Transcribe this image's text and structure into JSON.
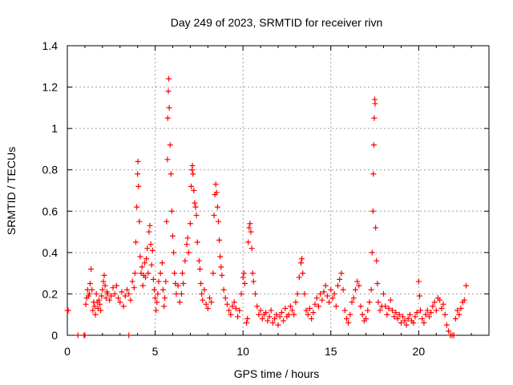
{
  "chart_data": {
    "type": "scatter",
    "title": "Day 249 of 2023, SRMTID for receiver rivn",
    "xlabel": "GPS time / hours",
    "ylabel": "SRMTID / TECUs",
    "xlim": [
      0,
      24
    ],
    "ylim": [
      0,
      1.4
    ],
    "xticks": [
      0,
      5,
      10,
      15,
      20
    ],
    "xtick_labels": [
      "0",
      "5",
      "10",
      "15",
      "20"
    ],
    "yticks": [
      0,
      0.2,
      0.4,
      0.6,
      0.8,
      1.0,
      1.2,
      1.4
    ],
    "ytick_labels": [
      "0",
      "0.2",
      "0.4",
      "0.6",
      "0.8",
      "1",
      "1.2",
      "1.4"
    ],
    "grid": true,
    "marker": "+",
    "color": "#ff0000",
    "series": [
      {
        "name": "SRMTID",
        "points": [
          [
            0.0,
            0.12
          ],
          [
            0.05,
            0.12
          ],
          [
            0.6,
            0.0
          ],
          [
            0.95,
            0.0
          ],
          [
            1.0,
            0.0
          ],
          [
            1.05,
            0.15
          ],
          [
            1.1,
            0.18
          ],
          [
            1.15,
            0.22
          ],
          [
            1.2,
            0.19
          ],
          [
            1.25,
            0.2
          ],
          [
            1.3,
            0.25
          ],
          [
            1.35,
            0.32
          ],
          [
            1.4,
            0.22
          ],
          [
            1.45,
            0.12
          ],
          [
            1.5,
            0.16
          ],
          [
            1.55,
            0.14
          ],
          [
            1.6,
            0.1
          ],
          [
            1.65,
            0.2
          ],
          [
            1.7,
            0.16
          ],
          [
            1.75,
            0.13
          ],
          [
            1.8,
            0.17
          ],
          [
            1.85,
            0.15
          ],
          [
            1.9,
            0.12
          ],
          [
            1.95,
            0.19
          ],
          [
            2.0,
            0.22
          ],
          [
            2.05,
            0.26
          ],
          [
            2.1,
            0.29
          ],
          [
            2.15,
            0.24
          ],
          [
            2.2,
            0.18
          ],
          [
            2.25,
            0.21
          ],
          [
            2.3,
            0.2
          ],
          [
            2.4,
            0.17
          ],
          [
            2.5,
            0.19
          ],
          [
            2.6,
            0.23
          ],
          [
            2.7,
            0.2
          ],
          [
            2.8,
            0.24
          ],
          [
            2.9,
            0.18
          ],
          [
            3.0,
            0.16
          ],
          [
            3.1,
            0.21
          ],
          [
            3.2,
            0.14
          ],
          [
            3.3,
            0.19
          ],
          [
            3.4,
            0.22
          ],
          [
            3.5,
            0.0
          ],
          [
            3.5,
            0.2
          ],
          [
            3.6,
            0.17
          ],
          [
            3.7,
            0.26
          ],
          [
            3.8,
            0.23
          ],
          [
            3.85,
            0.3
          ],
          [
            3.9,
            0.45
          ],
          [
            3.95,
            0.62
          ],
          [
            4.0,
            0.78
          ],
          [
            4.02,
            0.84
          ],
          [
            4.05,
            0.72
          ],
          [
            4.1,
            0.55
          ],
          [
            4.15,
            0.38
          ],
          [
            4.2,
            0.3
          ],
          [
            4.25,
            0.33
          ],
          [
            4.3,
            0.24
          ],
          [
            4.35,
            0.29
          ],
          [
            4.4,
            0.35
          ],
          [
            4.45,
            0.28
          ],
          [
            4.5,
            0.37
          ],
          [
            4.55,
            0.42
          ],
          [
            4.6,
            0.3
          ],
          [
            4.65,
            0.5
          ],
          [
            4.7,
            0.53
          ],
          [
            4.75,
            0.44
          ],
          [
            4.8,
            0.34
          ],
          [
            4.85,
            0.41
          ],
          [
            4.9,
            0.27
          ],
          [
            4.95,
            0.22
          ],
          [
            5.0,
            0.18
          ],
          [
            5.05,
            0.12
          ],
          [
            5.1,
            0.16
          ],
          [
            5.15,
            0.2
          ],
          [
            5.2,
            0.26
          ],
          [
            5.3,
            0.3
          ],
          [
            5.4,
            0.35
          ],
          [
            5.45,
            0.22
          ],
          [
            5.5,
            0.14
          ],
          [
            5.55,
            0.18
          ],
          [
            5.6,
            0.26
          ],
          [
            5.65,
            0.55
          ],
          [
            5.7,
            0.85
          ],
          [
            5.72,
            1.05
          ],
          [
            5.75,
            1.18
          ],
          [
            5.77,
            1.24
          ],
          [
            5.8,
            1.1
          ],
          [
            5.85,
            0.92
          ],
          [
            5.9,
            0.78
          ],
          [
            5.95,
            0.6
          ],
          [
            6.0,
            0.48
          ],
          [
            6.05,
            0.4
          ],
          [
            6.1,
            0.3
          ],
          [
            6.15,
            0.25
          ],
          [
            6.2,
            0.2
          ],
          [
            6.3,
            0.24
          ],
          [
            6.4,
            0.16
          ],
          [
            6.5,
            0.2
          ],
          [
            6.55,
            0.3
          ],
          [
            6.6,
            0.25
          ],
          [
            6.7,
            0.36
          ],
          [
            6.8,
            0.44
          ],
          [
            6.85,
            0.47
          ],
          [
            6.9,
            0.4
          ],
          [
            7.0,
            0.54
          ],
          [
            7.05,
            0.72
          ],
          [
            7.1,
            0.8
          ],
          [
            7.12,
            0.82
          ],
          [
            7.15,
            0.78
          ],
          [
            7.2,
            0.7
          ],
          [
            7.25,
            0.64
          ],
          [
            7.3,
            0.62
          ],
          [
            7.35,
            0.58
          ],
          [
            7.4,
            0.45
          ],
          [
            7.5,
            0.36
          ],
          [
            7.55,
            0.32
          ],
          [
            7.6,
            0.25
          ],
          [
            7.65,
            0.2
          ],
          [
            7.7,
            0.17
          ],
          [
            7.8,
            0.22
          ],
          [
            7.9,
            0.15
          ],
          [
            8.0,
            0.13
          ],
          [
            8.1,
            0.18
          ],
          [
            8.2,
            0.16
          ],
          [
            8.3,
            0.3
          ],
          [
            8.35,
            0.58
          ],
          [
            8.4,
            0.68
          ],
          [
            8.45,
            0.73
          ],
          [
            8.5,
            0.69
          ],
          [
            8.55,
            0.62
          ],
          [
            8.6,
            0.55
          ],
          [
            8.65,
            0.46
          ],
          [
            8.7,
            0.38
          ],
          [
            8.75,
            0.33
          ],
          [
            8.8,
            0.29
          ],
          [
            8.9,
            0.22
          ],
          [
            9.0,
            0.18
          ],
          [
            9.1,
            0.15
          ],
          [
            9.2,
            0.12
          ],
          [
            9.3,
            0.1
          ],
          [
            9.4,
            0.14
          ],
          [
            9.5,
            0.16
          ],
          [
            9.6,
            0.13
          ],
          [
            9.7,
            0.09
          ],
          [
            9.8,
            0.12
          ],
          [
            9.9,
            0.2
          ],
          [
            10.0,
            0.28
          ],
          [
            10.05,
            0.3
          ],
          [
            10.1,
            0.25
          ],
          [
            10.2,
            0.06
          ],
          [
            10.25,
            0.08
          ],
          [
            10.3,
            0.45
          ],
          [
            10.35,
            0.52
          ],
          [
            10.4,
            0.54
          ],
          [
            10.45,
            0.5
          ],
          [
            10.5,
            0.42
          ],
          [
            10.55,
            0.3
          ],
          [
            10.6,
            0.26
          ],
          [
            10.7,
            0.2
          ],
          [
            10.8,
            0.14
          ],
          [
            10.9,
            0.1
          ],
          [
            11.0,
            0.12
          ],
          [
            11.1,
            0.08
          ],
          [
            11.2,
            0.1
          ],
          [
            11.3,
            0.11
          ],
          [
            11.4,
            0.07
          ],
          [
            11.5,
            0.09
          ],
          [
            11.6,
            0.12
          ],
          [
            11.7,
            0.06
          ],
          [
            11.8,
            0.08
          ],
          [
            11.9,
            0.1
          ],
          [
            12.0,
            0.05
          ],
          [
            12.1,
            0.09
          ],
          [
            12.2,
            0.11
          ],
          [
            12.3,
            0.07
          ],
          [
            12.4,
            0.13
          ],
          [
            12.5,
            0.09
          ],
          [
            12.6,
            0.1
          ],
          [
            12.7,
            0.14
          ],
          [
            12.8,
            0.12
          ],
          [
            12.9,
            0.1
          ],
          [
            13.0,
            0.16
          ],
          [
            13.1,
            0.2
          ],
          [
            13.2,
            0.28
          ],
          [
            13.3,
            0.35
          ],
          [
            13.35,
            0.37
          ],
          [
            13.4,
            0.3
          ],
          [
            13.5,
            0.2
          ],
          [
            13.6,
            0.12
          ],
          [
            13.7,
            0.1
          ],
          [
            13.8,
            0.13
          ],
          [
            13.9,
            0.08
          ],
          [
            14.0,
            0.11
          ],
          [
            14.1,
            0.15
          ],
          [
            14.2,
            0.18
          ],
          [
            14.3,
            0.14
          ],
          [
            14.4,
            0.2
          ],
          [
            14.5,
            0.17
          ],
          [
            14.6,
            0.21
          ],
          [
            14.7,
            0.24
          ],
          [
            14.8,
            0.19
          ],
          [
            14.9,
            0.16
          ],
          [
            15.0,
            0.22
          ],
          [
            15.1,
            0.18
          ],
          [
            15.2,
            0.2
          ],
          [
            15.3,
            0.14
          ],
          [
            15.4,
            0.24
          ],
          [
            15.5,
            0.27
          ],
          [
            15.6,
            0.3
          ],
          [
            15.7,
            0.22
          ],
          [
            15.8,
            0.12
          ],
          [
            15.9,
            0.08
          ],
          [
            16.0,
            0.06
          ],
          [
            16.1,
            0.1
          ],
          [
            16.2,
            0.16
          ],
          [
            16.3,
            0.18
          ],
          [
            16.4,
            0.22
          ],
          [
            16.5,
            0.26
          ],
          [
            16.6,
            0.24
          ],
          [
            16.7,
            0.14
          ],
          [
            16.8,
            0.1
          ],
          [
            16.9,
            0.07
          ],
          [
            17.0,
            0.08
          ],
          [
            17.1,
            0.12
          ],
          [
            17.2,
            0.16
          ],
          [
            17.3,
            0.22
          ],
          [
            17.35,
            0.4
          ],
          [
            17.4,
            0.6
          ],
          [
            17.42,
            0.78
          ],
          [
            17.45,
            0.92
          ],
          [
            17.47,
            1.05
          ],
          [
            17.5,
            1.14
          ],
          [
            17.52,
            1.12
          ],
          [
            17.55,
            0.52
          ],
          [
            17.6,
            0.36
          ],
          [
            17.65,
            0.25
          ],
          [
            17.7,
            0.16
          ],
          [
            17.8,
            0.12
          ],
          [
            17.9,
            0.14
          ],
          [
            18.0,
            0.2
          ],
          [
            18.1,
            0.14
          ],
          [
            18.2,
            0.1
          ],
          [
            18.3,
            0.13
          ],
          [
            18.4,
            0.17
          ],
          [
            18.5,
            0.12
          ],
          [
            18.6,
            0.09
          ],
          [
            18.7,
            0.11
          ],
          [
            18.8,
            0.08
          ],
          [
            18.9,
            0.1
          ],
          [
            19.0,
            0.06
          ],
          [
            19.1,
            0.09
          ],
          [
            19.2,
            0.07
          ],
          [
            19.3,
            0.05
          ],
          [
            19.4,
            0.08
          ],
          [
            19.5,
            0.1
          ],
          [
            19.6,
            0.07
          ],
          [
            19.7,
            0.06
          ],
          [
            19.8,
            0.09
          ],
          [
            19.9,
            0.11
          ],
          [
            20.0,
            0.26
          ],
          [
            20.05,
            0.19
          ],
          [
            20.1,
            0.12
          ],
          [
            20.2,
            0.08
          ],
          [
            20.3,
            0.06
          ],
          [
            20.4,
            0.1
          ],
          [
            20.5,
            0.12
          ],
          [
            20.6,
            0.09
          ],
          [
            20.7,
            0.11
          ],
          [
            20.8,
            0.14
          ],
          [
            20.9,
            0.16
          ],
          [
            21.0,
            0.12
          ],
          [
            21.1,
            0.18
          ],
          [
            21.2,
            0.17
          ],
          [
            21.3,
            0.13
          ],
          [
            21.4,
            0.15
          ],
          [
            21.5,
            0.1
          ],
          [
            21.6,
            0.05
          ],
          [
            21.7,
            0.02
          ],
          [
            21.8,
            0.0
          ],
          [
            21.9,
            0.0
          ],
          [
            22.0,
            0.0
          ],
          [
            22.1,
            0.08
          ],
          [
            22.2,
            0.12
          ],
          [
            22.3,
            0.1
          ],
          [
            22.4,
            0.13
          ],
          [
            22.5,
            0.16
          ],
          [
            22.6,
            0.17
          ],
          [
            22.7,
            0.24
          ]
        ]
      }
    ]
  }
}
